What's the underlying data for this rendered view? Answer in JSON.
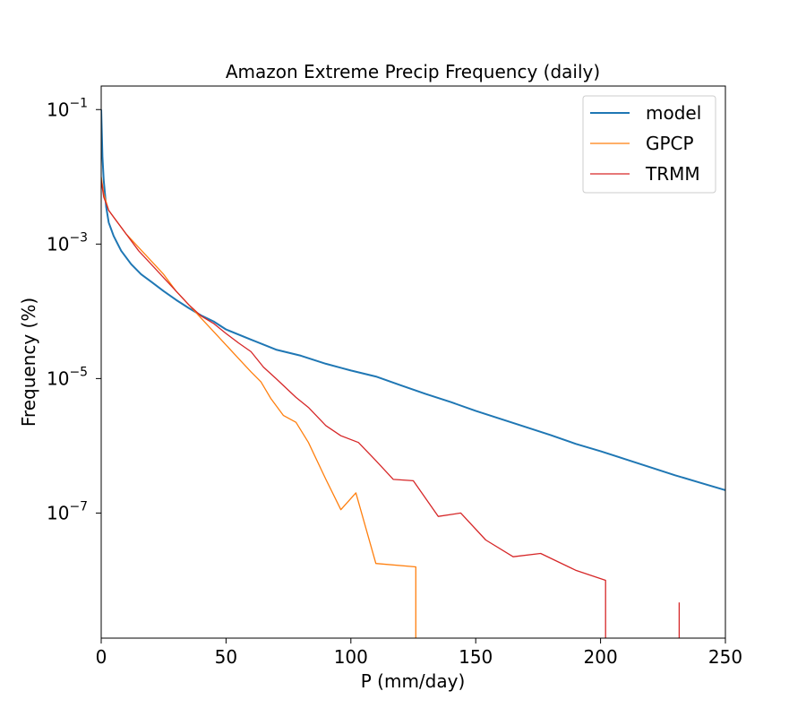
{
  "chart_data": {
    "type": "line",
    "title": "Amazon Extreme Precip Frequency (daily)",
    "xlabel": "P (mm/day)",
    "ylabel": "Frequency (%)",
    "xlim": [
      0,
      250
    ],
    "ylog": true,
    "ylim_exp": [
      -8.86,
      -0.65
    ],
    "x_ticks": [
      0,
      50,
      100,
      150,
      200,
      250
    ],
    "x_tick_labels": [
      "0",
      "50",
      "100",
      "150",
      "200",
      "250"
    ],
    "y_ticks": [
      -7,
      -5,
      -3,
      -1
    ],
    "y_tick_labels": [
      {
        "base": "10",
        "exp": "−7"
      },
      {
        "base": "10",
        "exp": "−5"
      },
      {
        "base": "10",
        "exp": "−3"
      },
      {
        "base": "10",
        "exp": "−1"
      }
    ],
    "legend_position": "top-right",
    "series": [
      {
        "name": "model",
        "color": "#1f77b4",
        "line_weight": "thick",
        "points": [
          [
            0,
            -1
          ],
          [
            0.5,
            -1.7
          ],
          [
            1,
            -2.05
          ],
          [
            2,
            -2.45
          ],
          [
            3,
            -2.68
          ],
          [
            5,
            -2.88
          ],
          [
            8,
            -3.1
          ],
          [
            12,
            -3.3
          ],
          [
            16,
            -3.45
          ],
          [
            20,
            -3.56
          ],
          [
            25,
            -3.7
          ],
          [
            30,
            -3.83
          ],
          [
            35,
            -3.95
          ],
          [
            40,
            -4.06
          ],
          [
            45,
            -4.15
          ],
          [
            50,
            -4.27
          ],
          [
            60,
            -4.42
          ],
          [
            70,
            -4.57
          ],
          [
            80,
            -4.66
          ],
          [
            90,
            -4.78
          ],
          [
            100,
            -4.88
          ],
          [
            110,
            -4.97
          ],
          [
            120,
            -5.1
          ],
          [
            130,
            -5.23
          ],
          [
            140,
            -5.35
          ],
          [
            150,
            -5.48
          ],
          [
            160,
            -5.6
          ],
          [
            170,
            -5.72
          ],
          [
            180,
            -5.84
          ],
          [
            190,
            -5.97
          ],
          [
            200,
            -6.08
          ],
          [
            210,
            -6.2
          ],
          [
            220,
            -6.32
          ],
          [
            230,
            -6.44
          ],
          [
            240,
            -6.55
          ],
          [
            250,
            -6.66
          ]
        ]
      },
      {
        "name": "GPCP",
        "color": "#ff7f0e",
        "line_weight": "thin",
        "points": [
          [
            0,
            -2.0
          ],
          [
            1,
            -2.25
          ],
          [
            3,
            -2.5
          ],
          [
            5,
            -2.6
          ],
          [
            10,
            -2.85
          ],
          [
            15,
            -3.05
          ],
          [
            20,
            -3.25
          ],
          [
            25,
            -3.45
          ],
          [
            30,
            -3.7
          ],
          [
            35,
            -3.9
          ],
          [
            40,
            -4.1
          ],
          [
            45,
            -4.3
          ],
          [
            50,
            -4.5
          ],
          [
            55,
            -4.7
          ],
          [
            60,
            -4.9
          ],
          [
            64,
            -5.05
          ],
          [
            68,
            -5.3
          ],
          [
            73,
            -5.55
          ],
          [
            78,
            -5.65
          ],
          [
            83,
            -5.95
          ],
          [
            90,
            -6.5
          ],
          [
            96,
            -6.95
          ],
          [
            102,
            -6.7
          ],
          [
            110,
            -7.75
          ],
          [
            126,
            -7.8
          ],
          [
            126,
            -8.86
          ]
        ]
      },
      {
        "name": "TRMM",
        "color": "#d62728",
        "line_weight": "thin",
        "points": [
          [
            0,
            -2.05
          ],
          [
            1,
            -2.3
          ],
          [
            3,
            -2.5
          ],
          [
            5,
            -2.6
          ],
          [
            10,
            -2.85
          ],
          [
            15,
            -3.1
          ],
          [
            20,
            -3.3
          ],
          [
            25,
            -3.5
          ],
          [
            30,
            -3.7
          ],
          [
            35,
            -3.9
          ],
          [
            40,
            -4.07
          ],
          [
            45,
            -4.18
          ],
          [
            50,
            -4.33
          ],
          [
            55,
            -4.47
          ],
          [
            60,
            -4.6
          ],
          [
            65,
            -4.83
          ],
          [
            70,
            -5.0
          ],
          [
            78,
            -5.28
          ],
          [
            83,
            -5.43
          ],
          [
            90,
            -5.7
          ],
          [
            96,
            -5.85
          ],
          [
            103,
            -5.95
          ],
          [
            110,
            -6.22
          ],
          [
            117,
            -6.5
          ],
          [
            125,
            -6.52
          ],
          [
            135,
            -7.05
          ],
          [
            144,
            -7.0
          ],
          [
            154,
            -7.4
          ],
          [
            165,
            -7.65
          ],
          [
            176,
            -7.6
          ],
          [
            190,
            -7.85
          ],
          [
            202,
            -8.0
          ],
          [
            202,
            -8.86
          ]
        ]
      },
      {
        "name": "",
        "color": "#d62728",
        "line_weight": "thin",
        "points": [
          [
            231.5,
            -8.33
          ],
          [
            231.5,
            -8.86
          ]
        ]
      }
    ]
  }
}
